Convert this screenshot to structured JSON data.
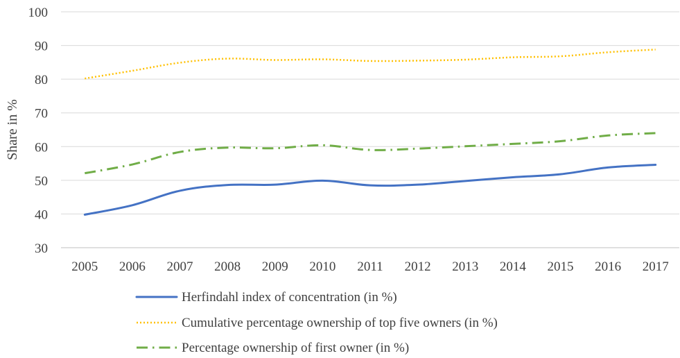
{
  "chart_data": {
    "type": "line",
    "title": "",
    "xlabel": "",
    "ylabel": "Share in %",
    "x": [
      "2005",
      "2006",
      "2007",
      "2008",
      "2009",
      "2010",
      "2011",
      "2012",
      "2013",
      "2014",
      "2015",
      "2016",
      "2017"
    ],
    "ylim": [
      30,
      100
    ],
    "yticks": [
      "30",
      "40",
      "50",
      "60",
      "70",
      "80",
      "90",
      "100"
    ],
    "grid": "horizontal",
    "legend_position": "bottom",
    "series": [
      {
        "name": "Herfindahl index of concentration (in %)",
        "color": "#4472C4",
        "line_style": "solid",
        "values": [
          39.8,
          42.6,
          46.9,
          48.6,
          48.7,
          49.9,
          48.5,
          48.7,
          49.8,
          50.9,
          51.8,
          53.8,
          54.6
        ]
      },
      {
        "name": "Cumulative percentage ownership of top five owners (in %)",
        "color": "#FFC000",
        "line_style": "dotted",
        "values": [
          80.2,
          82.5,
          84.9,
          86.1,
          85.7,
          85.9,
          85.4,
          85.5,
          85.8,
          86.5,
          86.8,
          88.0,
          88.8
        ]
      },
      {
        "name": "Percentage ownership of first owner (in %)",
        "color": "#70AD47",
        "line_style": "long-dash-dot",
        "values": [
          52.1,
          54.7,
          58.4,
          59.7,
          59.5,
          60.4,
          59.0,
          59.4,
          60.1,
          60.8,
          61.6,
          63.3,
          64.0
        ]
      }
    ]
  }
}
